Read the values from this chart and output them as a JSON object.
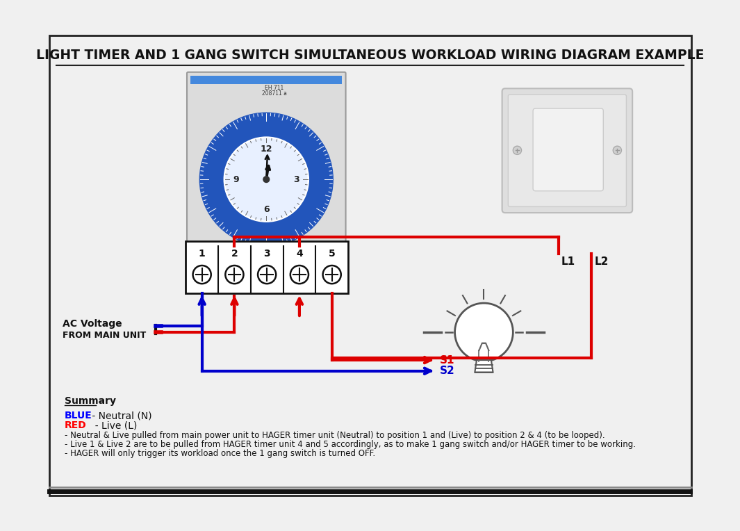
{
  "title": "LIGHT TIMER AND 1 GANG SWITCH SIMULTANEOUS WORKLOAD WIRING DIAGRAM EXAMPLE",
  "bg_color": "#f0f0f0",
  "border_color": "#222222",
  "title_color": "#111111",
  "title_fontsize": 13.5,
  "summary_title": "Summary",
  "summary_bullets": [
    "- Neutral & Live pulled from main power unit to HAGER timer unit (Neutral) to position 1 and (Live) to position 2 & 4 (to be looped).",
    "- Live 1 & Live 2 are to be pulled from HAGER timer unit 4 and 5 accordingly, as to make 1 gang switch and/or HAGER timer to be working.",
    "- HAGER will only trigger its workload once the 1 gang switch is turned OFF."
  ],
  "wire_red": "#dd0000",
  "wire_blue": "#0000cc",
  "terminal_labels": [
    "1",
    "2",
    "3",
    "4",
    "5"
  ],
  "label_L1": "L1",
  "label_L2": "L2",
  "label_S1": "S1",
  "label_S2": "S2",
  "label_ac": "AC Voltage",
  "label_ac2": "FROM MAIN UNIT"
}
